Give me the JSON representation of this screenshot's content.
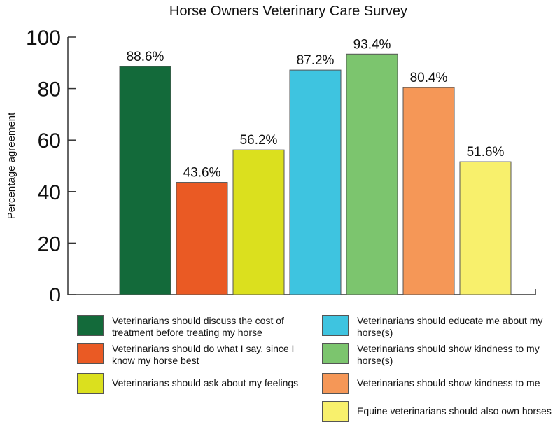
{
  "chart_data": {
    "type": "bar",
    "title": "Horse Owners Veterinary Care Survey",
    "xlabel": "",
    "ylabel": "Percentage agreement",
    "ylim": [
      0,
      100
    ],
    "yticks": [
      "0",
      "20",
      "40",
      "60",
      "80",
      "100"
    ],
    "grid": false,
    "legend_position": "bottom",
    "categories": [
      "Veterinarians should discuss the cost of treatment before treating my horse",
      "Veterinarians should do what I say, since I know my horse best",
      "Veterinarians should ask about my feelings",
      "Veterinarians should educate me about my horse(s)",
      "Veterinarians should show kindness to my horse(s)",
      "Veterinarians should show kindness to me",
      "Equine veterinarians should also own horses"
    ],
    "values": [
      88.6,
      43.6,
      56.2,
      87.2,
      93.4,
      80.4,
      51.6
    ],
    "data_labels": [
      "88.6%",
      "43.6%",
      "56.2%",
      "87.2%",
      "93.4%",
      "80.4%",
      "51.6%"
    ],
    "colors": [
      "#136a3a",
      "#ea5a24",
      "#dbe01e",
      "#3ec4e0",
      "#7cc56e",
      "#f59757",
      "#f8f06c"
    ]
  }
}
